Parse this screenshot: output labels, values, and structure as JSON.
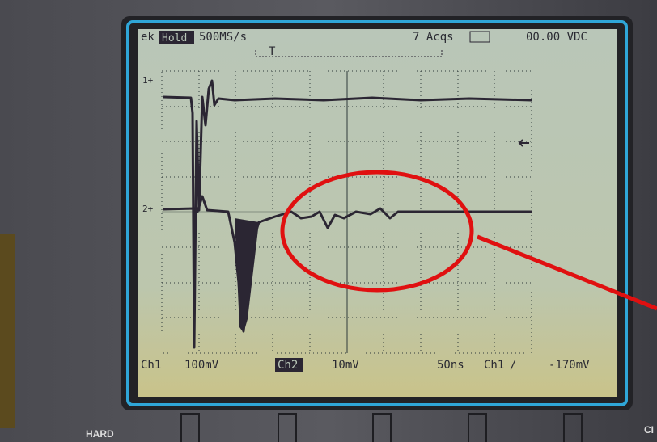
{
  "screen": {
    "header": {
      "brand": "ek",
      "mode": "Hold",
      "sample_rate": "500MS/s",
      "acquisitions": "7 Acqs",
      "readout": "00.00 VDC",
      "trigger_marker": "T"
    },
    "channel_markers": [
      "1+",
      "2+"
    ],
    "footer": {
      "ch1_label": "Ch1",
      "ch1_scale": "100mV",
      "ch2_label": "Ch2",
      "ch2_scale": "10mV",
      "timebase": "50ns",
      "trigger_source": "Ch1",
      "trigger_slope": "/",
      "trigger_level": "-170mV"
    }
  },
  "bezel": {
    "left_label": "HARD",
    "right_label": "CI"
  }
}
